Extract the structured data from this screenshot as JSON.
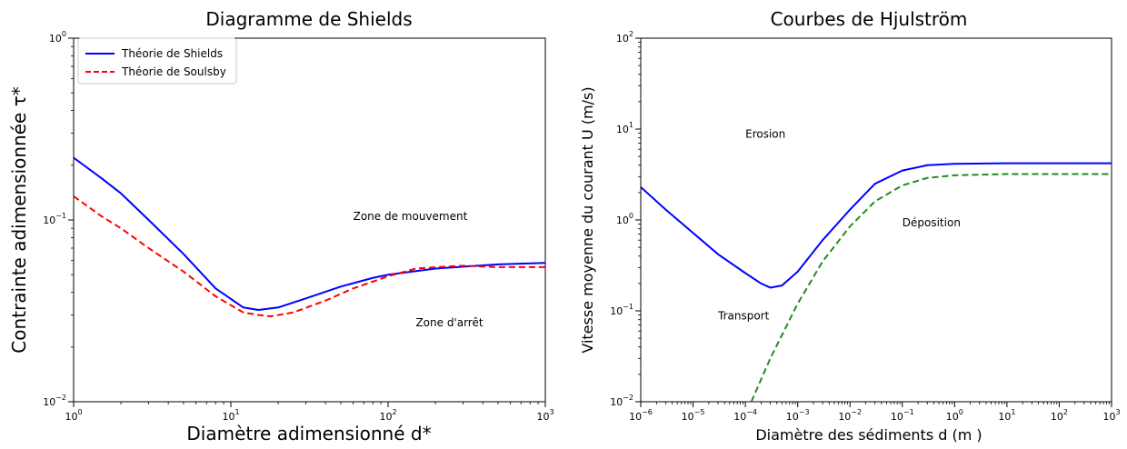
{
  "chart_data": [
    {
      "type": "line",
      "title": "Diagramme de Shields",
      "xlabel": "Diamètre adimensionné d*",
      "ylabel": "Contrainte adimensionnée τ*",
      "xscale": "log",
      "yscale": "log",
      "xlim": [
        1,
        1000
      ],
      "ylim": [
        0.01,
        1
      ],
      "grid": false,
      "legend_position": "top-left",
      "xticks": [
        1,
        10,
        100,
        1000
      ],
      "yticks": [
        0.01,
        0.1,
        1
      ],
      "series": [
        {
          "name": "Théorie de Shields",
          "color": "#0000ff",
          "style": "solid",
          "x": [
            1,
            1.5,
            2,
            3,
            5,
            8,
            12,
            15,
            20,
            30,
            50,
            80,
            100,
            200,
            500,
            1000
          ],
          "y": [
            0.22,
            0.17,
            0.14,
            0.1,
            0.065,
            0.042,
            0.033,
            0.032,
            0.033,
            0.037,
            0.043,
            0.048,
            0.05,
            0.054,
            0.057,
            0.058
          ]
        },
        {
          "name": "Théorie de Soulsby",
          "color": "#ff0000",
          "style": "dashed",
          "x": [
            1,
            1.5,
            2,
            3,
            5,
            8,
            12,
            15,
            18,
            25,
            40,
            60,
            100,
            150,
            200,
            300,
            500,
            1000
          ],
          "y": [
            0.135,
            0.105,
            0.09,
            0.07,
            0.052,
            0.038,
            0.031,
            0.03,
            0.0295,
            0.031,
            0.036,
            0.042,
            0.049,
            0.054,
            0.055,
            0.056,
            0.055,
            0.055
          ]
        }
      ],
      "annotations": [
        {
          "text": "Zone de mouvement",
          "x": 60,
          "y": 0.1
        },
        {
          "text": "Zone d'arrêt",
          "x": 150,
          "y": 0.026
        }
      ]
    },
    {
      "type": "line",
      "title": "Courbes de Hjulström",
      "xlabel": "Diamètre des sédiments d (m )",
      "ylabel": "Vitesse moyenne du courant U (m/s)",
      "xscale": "log",
      "yscale": "log",
      "xlim": [
        1e-06,
        1000
      ],
      "ylim": [
        0.01,
        100
      ],
      "grid": false,
      "xticks": [
        1e-06,
        1e-05,
        0.0001,
        0.001,
        0.01,
        0.1,
        1,
        10,
        100,
        1000
      ],
      "yticks": [
        0.01,
        0.1,
        1,
        10,
        100
      ],
      "series": [
        {
          "color": "#0000ff",
          "style": "solid",
          "x": [
            1e-06,
            3e-06,
            1e-05,
            3e-05,
            0.0001,
            0.0002,
            0.0003,
            0.0005,
            0.001,
            0.003,
            0.01,
            0.03,
            0.1,
            0.3,
            1,
            10,
            100,
            1000
          ],
          "y": [
            2.3,
            1.3,
            0.72,
            0.42,
            0.26,
            0.2,
            0.18,
            0.19,
            0.27,
            0.6,
            1.3,
            2.5,
            3.5,
            4.0,
            4.15,
            4.2,
            4.2,
            4.2
          ]
        },
        {
          "color": "#228b22",
          "style": "dashed",
          "x": [
            0.00013,
            0.0003,
            0.001,
            0.003,
            0.01,
            0.03,
            0.1,
            0.3,
            1,
            10,
            100,
            1000
          ],
          "y": [
            0.01,
            0.03,
            0.12,
            0.35,
            0.85,
            1.6,
            2.4,
            2.9,
            3.1,
            3.2,
            3.2,
            3.2
          ]
        }
      ],
      "annotations": [
        {
          "text": "Erosion",
          "x": 0.0001,
          "y": 8
        },
        {
          "text": "Déposition",
          "x": 0.1,
          "y": 0.85
        },
        {
          "text": "Transport",
          "x": 3e-05,
          "y": 0.08
        }
      ]
    }
  ],
  "tick_text": {
    "left": {
      "x": [
        {
          "base": "10",
          "exp": "0"
        },
        {
          "base": "10",
          "exp": "1"
        },
        {
          "base": "10",
          "exp": "2"
        },
        {
          "base": "10",
          "exp": "3"
        }
      ],
      "y": [
        {
          "base": "10",
          "exp": "−2"
        },
        {
          "base": "10",
          "exp": "−1"
        },
        {
          "base": "10",
          "exp": "0"
        }
      ]
    },
    "right": {
      "x": [
        {
          "base": "10",
          "exp": "−6"
        },
        {
          "base": "10",
          "exp": "−5"
        },
        {
          "base": "10",
          "exp": "−4"
        },
        {
          "base": "10",
          "exp": "−3"
        },
        {
          "base": "10",
          "exp": "−2"
        },
        {
          "base": "10",
          "exp": "−1"
        },
        {
          "base": "10",
          "exp": "0"
        },
        {
          "base": "10",
          "exp": "1"
        },
        {
          "base": "10",
          "exp": "2"
        },
        {
          "base": "10",
          "exp": "3"
        }
      ],
      "y": [
        {
          "base": "10",
          "exp": "−2"
        },
        {
          "base": "10",
          "exp": "−1"
        },
        {
          "base": "10",
          "exp": "0"
        },
        {
          "base": "10",
          "exp": "1"
        },
        {
          "base": "10",
          "exp": "2"
        }
      ]
    }
  }
}
